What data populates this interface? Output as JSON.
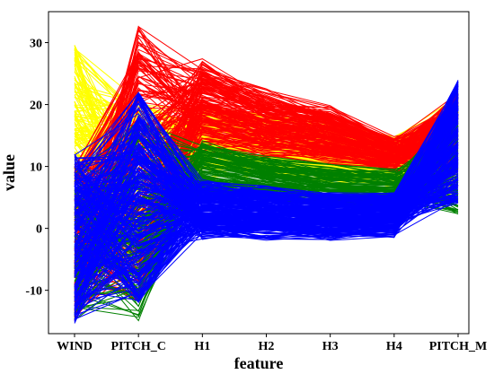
{
  "chart_data": {
    "type": "line",
    "subtype": "parallel-coordinates",
    "title": "",
    "xlabel": "feature",
    "ylabel": "value",
    "categories": [
      "WIND",
      "PITCH_C",
      "H1",
      "H2",
      "H3",
      "H4",
      "PITCH_M"
    ],
    "ylim": [
      -17,
      35
    ],
    "yticks": [
      -10,
      0,
      10,
      20,
      30
    ],
    "grid": false,
    "legend": "none",
    "series": [
      {
        "color": "#ffff00",
        "count": 150,
        "ranges": [
          [
            5,
            30
          ],
          [
            -9,
            21
          ],
          [
            8,
            20
          ],
          [
            8,
            19
          ],
          [
            7,
            17
          ],
          [
            6,
            15
          ],
          [
            4,
            22
          ]
        ]
      },
      {
        "color": "#ff0000",
        "count": 180,
        "ranges": [
          [
            -15,
            10
          ],
          [
            -12,
            33
          ],
          [
            12,
            28
          ],
          [
            11,
            23
          ],
          [
            10,
            20
          ],
          [
            9,
            15
          ],
          [
            9,
            22
          ]
        ]
      },
      {
        "color": "#008000",
        "count": 130,
        "ranges": [
          [
            -15,
            10
          ],
          [
            -15,
            18
          ],
          [
            5,
            15
          ],
          [
            4,
            12
          ],
          [
            3,
            11
          ],
          [
            3,
            10
          ],
          [
            2,
            20
          ]
        ]
      },
      {
        "color": "#0000ff",
        "count": 260,
        "ranges": [
          [
            -15.5,
            12
          ],
          [
            -12,
            22
          ],
          [
            -2,
            8
          ],
          [
            -2,
            7
          ],
          [
            -2,
            6
          ],
          [
            -1.5,
            6
          ],
          [
            4,
            24
          ]
        ]
      }
    ]
  }
}
